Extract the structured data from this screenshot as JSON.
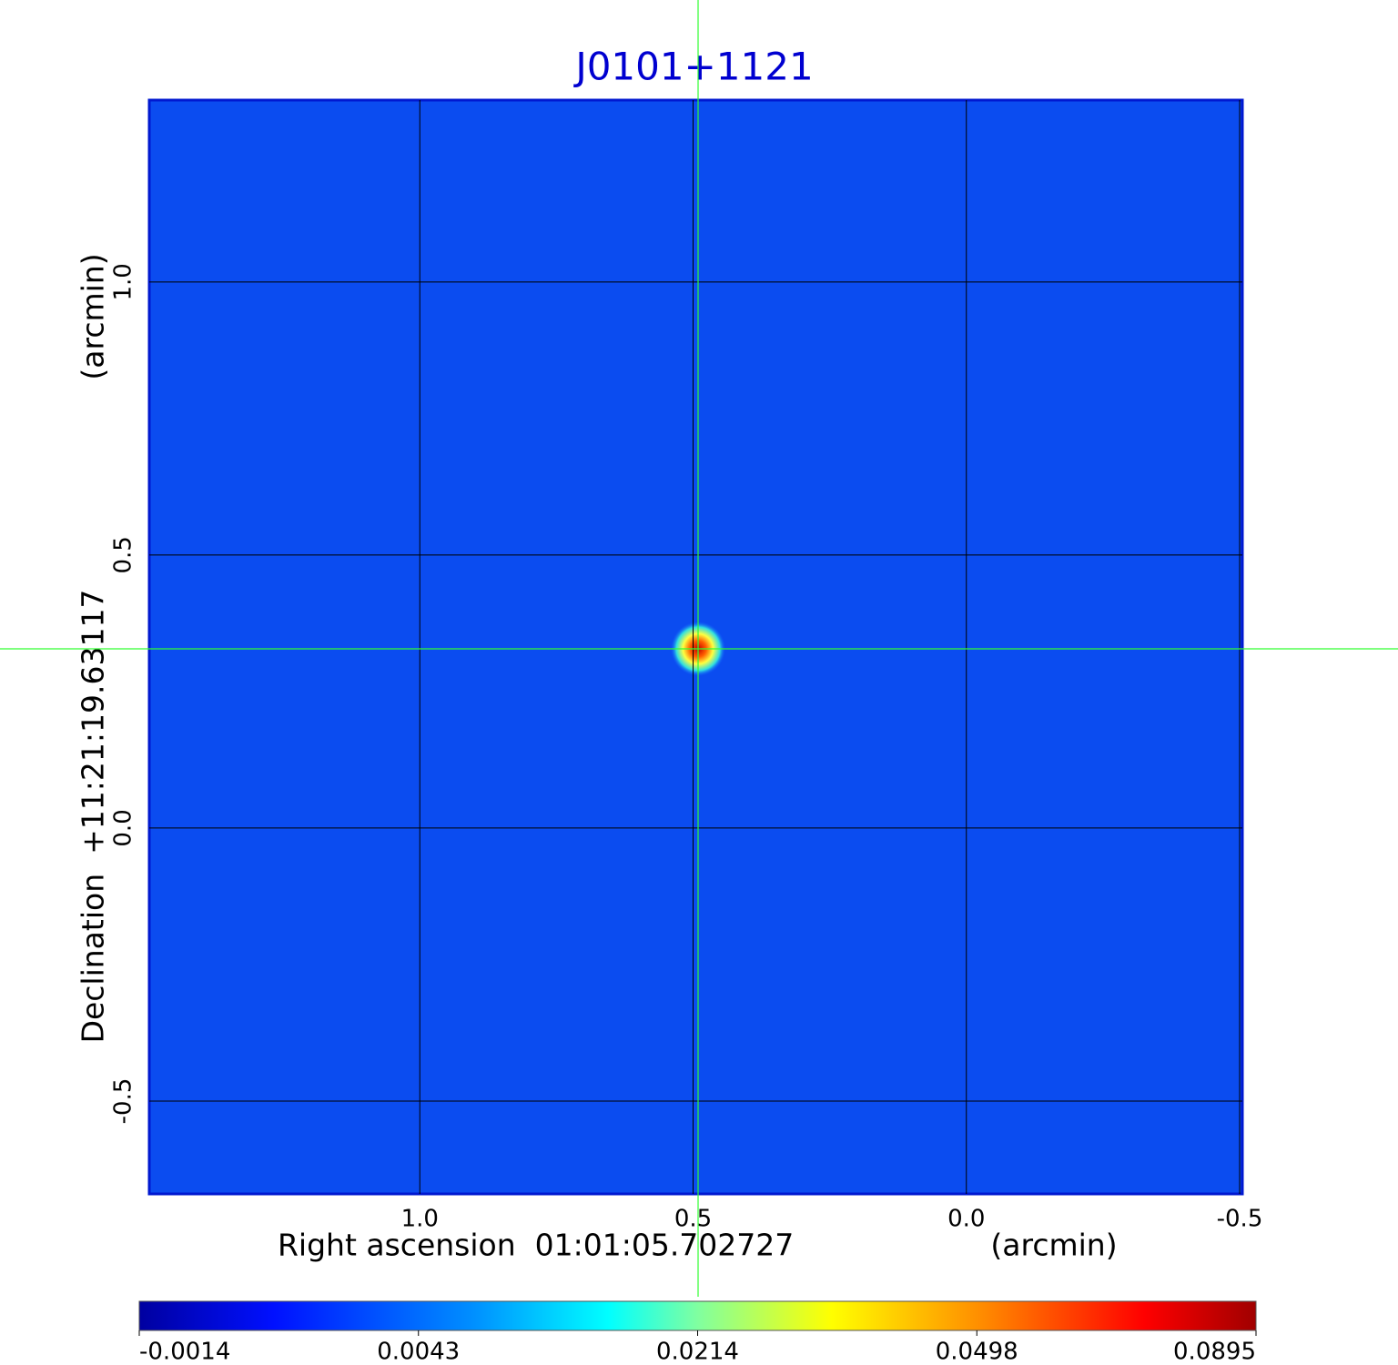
{
  "chart_data": {
    "type": "image",
    "title": "J0101+1121",
    "x_label": "Right ascension  01:01:05.702727",
    "x_unit": "(arcmin)",
    "y_label": "Declination  +11:21:19.63117",
    "y_unit": "(arcmin)",
    "xlim": [
      1.495,
      -0.505
    ],
    "xticks": [
      {
        "value": 1,
        "label": "1.0"
      },
      0.5,
      {
        "value": 0,
        "label": "0.0"
      },
      -0.5
    ],
    "ylim": [
      -0.67,
      1.333
    ],
    "yticks": [
      {
        "value": 1,
        "label": "1.0"
      },
      0.5,
      {
        "value": 0,
        "label": "0.0"
      },
      -0.5
    ],
    "grid": true,
    "colorbar_ticks": [
      -0.0014,
      0.0043,
      0.0214,
      0.0498,
      0.0895
    ]
  }
}
